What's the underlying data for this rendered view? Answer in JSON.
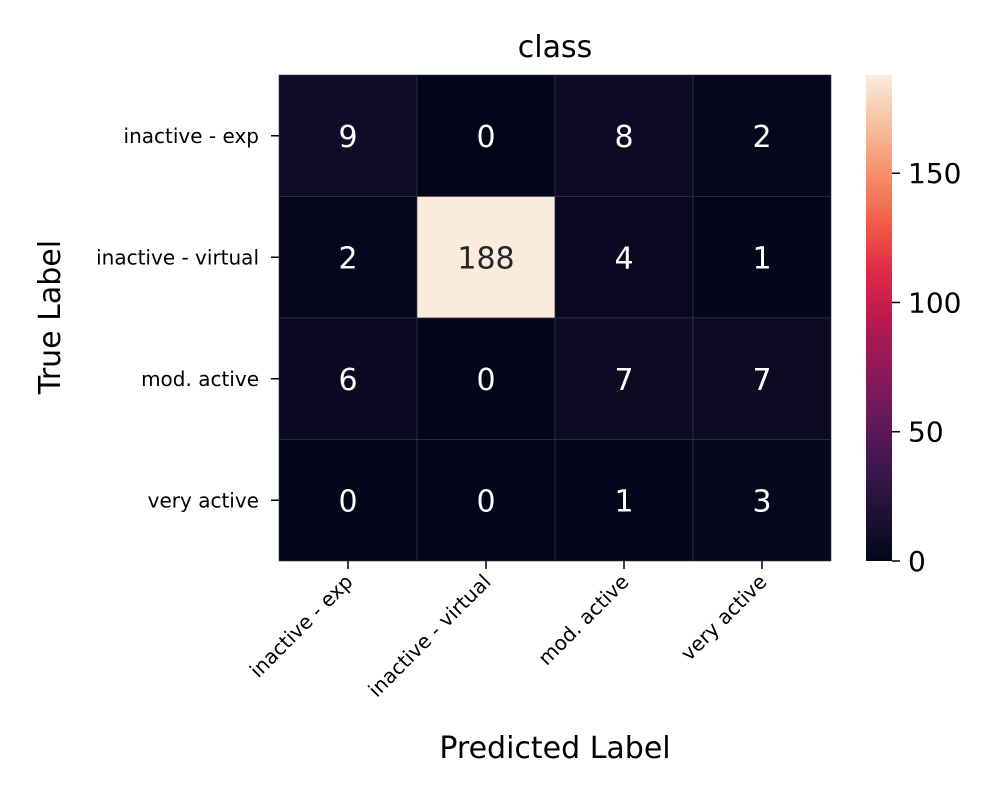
{
  "chart_data": {
    "type": "heatmap",
    "title": "class",
    "xlabel": "Predicted Label",
    "ylabel": "True Label",
    "x_categories": [
      "inactive - exp",
      "inactive - virtual",
      "mod. active",
      "very active"
    ],
    "y_categories": [
      "inactive - exp",
      "inactive - virtual",
      "mod. active",
      "very active"
    ],
    "values": [
      [
        9,
        0,
        8,
        2
      ],
      [
        2,
        188,
        4,
        1
      ],
      [
        6,
        0,
        7,
        7
      ],
      [
        0,
        0,
        1,
        3
      ]
    ],
    "colorbar": {
      "min": 0,
      "max": 188,
      "ticks": [
        0,
        50,
        100,
        150
      ],
      "tick_labels": [
        "0",
        "50",
        "100",
        "150"
      ],
      "colormap": "rocket"
    },
    "annotations_shown": true,
    "grid": false,
    "colors": {
      "low": "#03051a",
      "high": "#faebdd",
      "cell_separator": "#3a3a4a"
    }
  }
}
